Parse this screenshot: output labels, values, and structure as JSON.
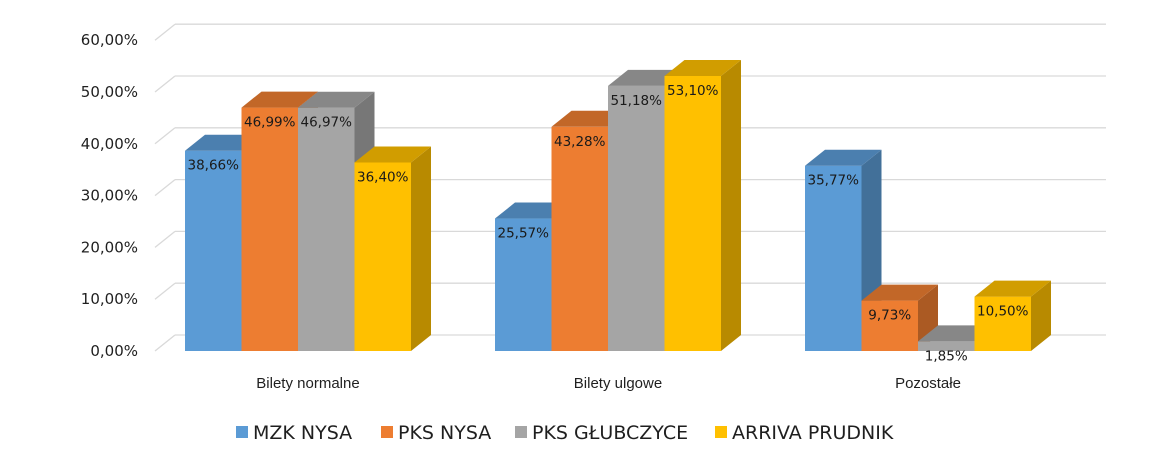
{
  "chart_data": {
    "type": "bar",
    "three_d": true,
    "categories": [
      "Bilety normalne",
      "Bilety ulgowe",
      "Pozostałe"
    ],
    "series": [
      {
        "name": "MZK NYSA",
        "color": "#5B9BD5",
        "values": [
          38.66,
          25.57,
          35.77
        ],
        "labels": [
          "38,66%",
          "25,57%",
          "35,77%"
        ]
      },
      {
        "name": "PKS NYSA",
        "color": "#ED7D31",
        "values": [
          46.99,
          43.28,
          9.73
        ],
        "labels": [
          "46,99%",
          "43,28%",
          "9,73%"
        ]
      },
      {
        "name": "PKS GŁUBCZYCE",
        "color": "#A5A5A5",
        "values": [
          46.97,
          51.18,
          1.85
        ],
        "labels": [
          "46,97%",
          "51,18%",
          "1,85%"
        ]
      },
      {
        "name": "ARRIVA PRUDNIK",
        "color": "#FFC000",
        "values": [
          36.4,
          53.1,
          10.5
        ],
        "labels": [
          "36,40%",
          "53,10%",
          "10,50%"
        ]
      }
    ],
    "yticks": [
      0,
      10,
      20,
      30,
      40,
      50,
      60,
      70
    ],
    "ytick_labels": [
      "0,00%",
      "10,00%",
      "20,00%",
      "30,00%",
      "40,00%",
      "50,00%",
      "60,00%",
      ""
    ],
    "ylim": [
      0,
      70
    ],
    "grid": true,
    "legend": "bottom"
  }
}
